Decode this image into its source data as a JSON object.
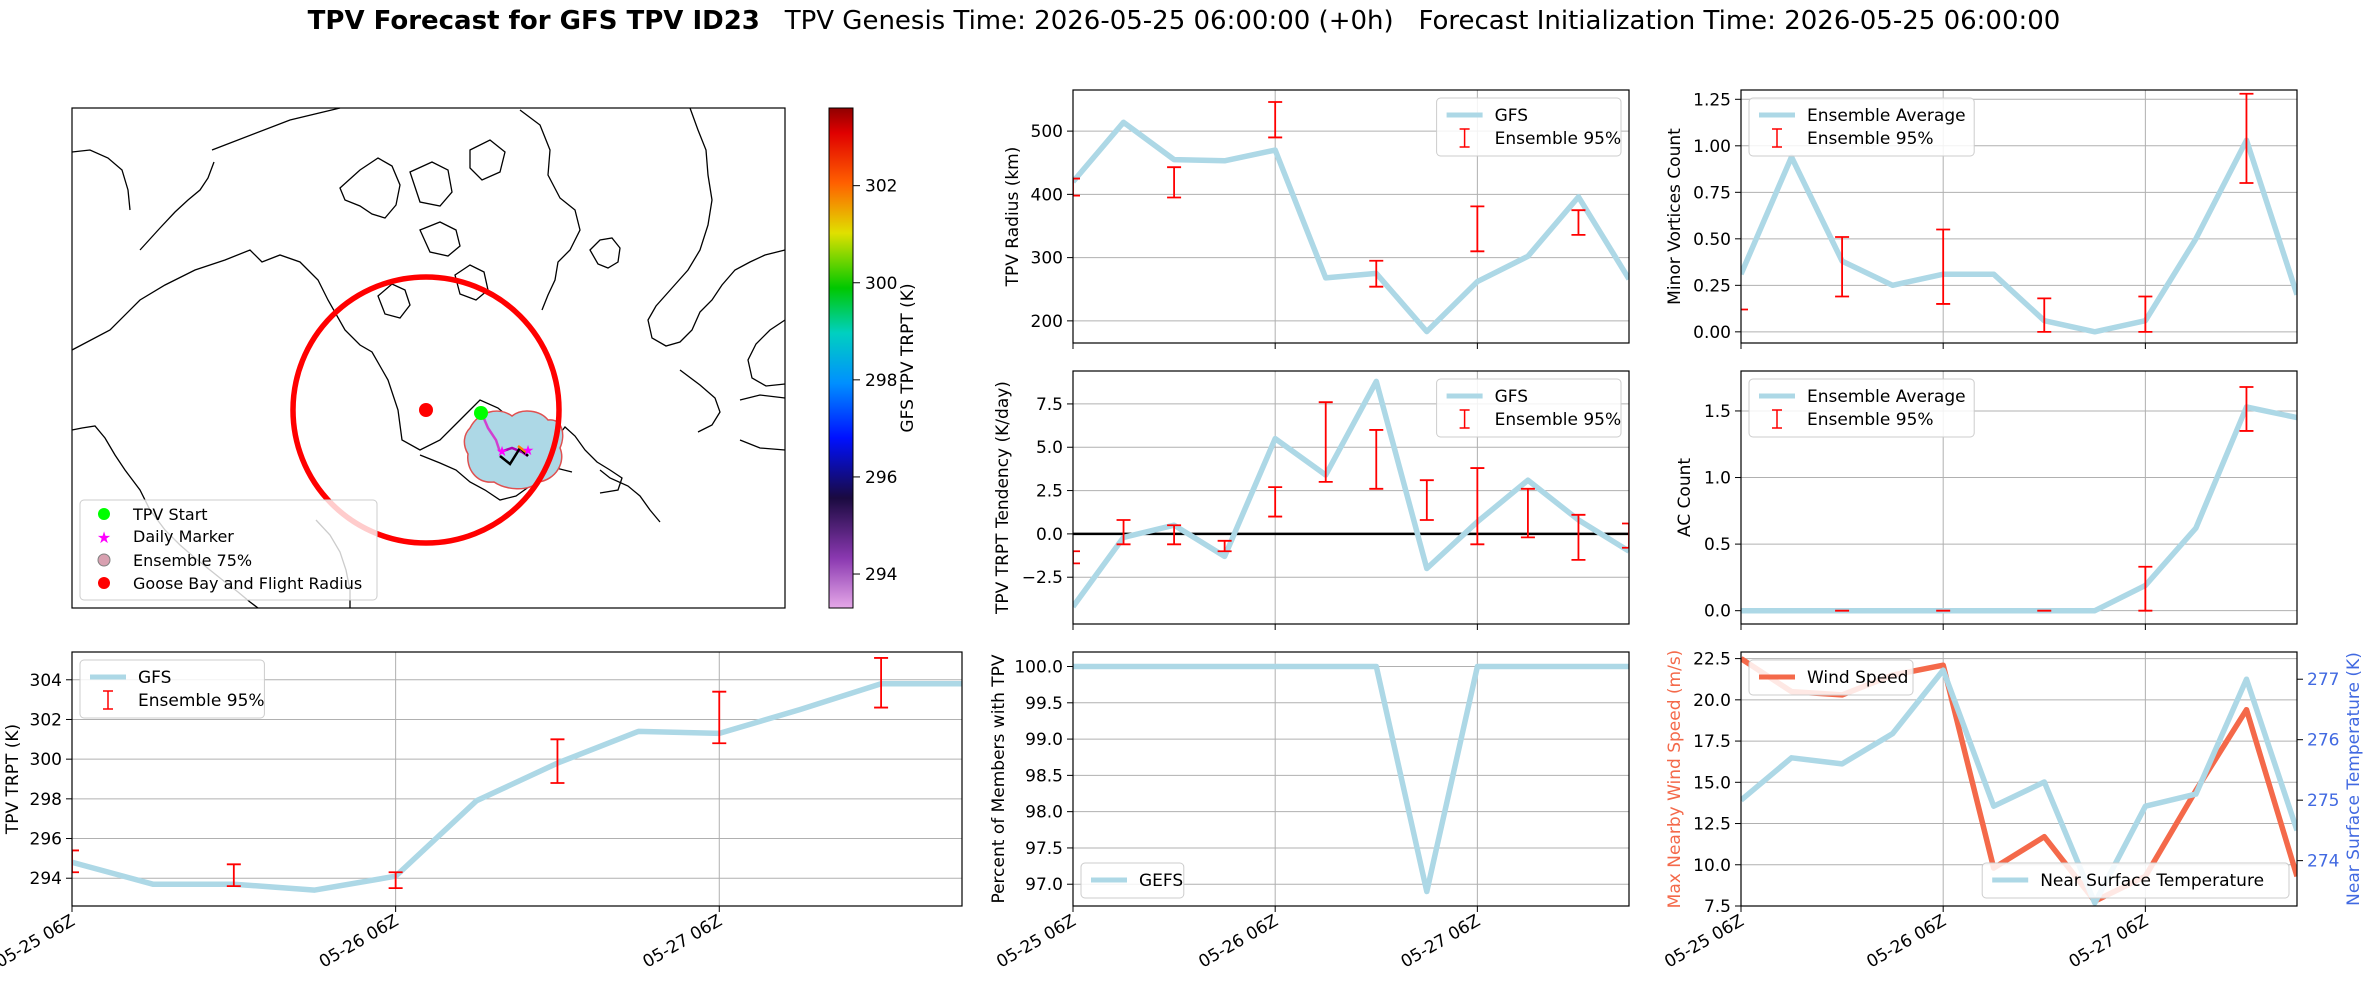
{
  "header": {
    "title_bold": "TPV Forecast for GFS TPV ID23",
    "genesis": "TPV Genesis Time: 2026-05-25 06:00:00 (+0h)",
    "init": "Forecast Initialization Time: 2026-05-25 06:00:00"
  },
  "colors": {
    "gfs": "#add8e6",
    "ensemble": "#ff0000",
    "wind": "#f4694a",
    "temp_axis": "#4169e1",
    "start": "#00ff00",
    "marker": "#ff00ff",
    "goose": "#ff0000"
  },
  "map": {
    "colorbar_label": "GFS TPV TRPT (K)",
    "colorbar_ticks": [
      294,
      296,
      298,
      300,
      302
    ],
    "colorbar_range": [
      293.3,
      303.6
    ],
    "legend": [
      "TPV Start",
      "Daily Marker",
      "Ensemble 75%",
      "Goose Bay and Flight Radius"
    ]
  },
  "chart_data": [
    {
      "id": "radius",
      "type": "line",
      "ylabel": "TPV Radius (km)",
      "ylim": [
        165,
        565
      ],
      "yticks": [
        200,
        300,
        400,
        500
      ],
      "yticklabels": [
        "200",
        "300",
        "400",
        "500"
      ],
      "xlim": [
        0,
        33
      ],
      "legend": [
        "GFS",
        "Ensemble 95%"
      ],
      "legend_loc": "upper right",
      "series": [
        {
          "name": "GFS",
          "x": [
            0,
            3,
            6,
            9,
            12,
            15,
            18,
            21,
            24,
            27,
            30,
            33
          ],
          "y": [
            420,
            514,
            455,
            453,
            470,
            268,
            275,
            183,
            262,
            302,
            396,
            266
          ]
        }
      ],
      "errorbars": [
        {
          "x": 0,
          "lo": 398,
          "hi": 425
        },
        {
          "x": 6,
          "lo": 395,
          "hi": 443
        },
        {
          "x": 12,
          "lo": 490,
          "hi": 546
        },
        {
          "x": 18,
          "lo": 254,
          "hi": 295
        },
        {
          "x": 24,
          "lo": 310,
          "hi": 381
        },
        {
          "x": 30,
          "lo": 336,
          "hi": 375
        }
      ]
    },
    {
      "id": "minor",
      "type": "line",
      "ylabel": "Minor Vortices Count",
      "ylim": [
        -0.06,
        1.3
      ],
      "yticks": [
        0,
        0.25,
        0.5,
        0.75,
        1,
        1.25
      ],
      "yticklabels": [
        "0.00",
        "0.25",
        "0.50",
        "0.75",
        "1.00",
        "1.25"
      ],
      "xlim": [
        0,
        33
      ],
      "legend": [
        "Ensemble Average",
        "Ensemble 95%"
      ],
      "legend_loc": "upper left",
      "series": [
        {
          "name": "Ensemble Average",
          "x": [
            0,
            3,
            6,
            9,
            12,
            15,
            18,
            21,
            24,
            27,
            30,
            33
          ],
          "y": [
            0.31,
            0.94,
            0.38,
            0.25,
            0.31,
            0.31,
            0.06,
            0.0,
            0.06,
            0.5,
            1.03,
            0.2
          ]
        }
      ],
      "errorbars": [
        {
          "x": 0,
          "lo": 0.12,
          "hi": 0.12
        },
        {
          "x": 6,
          "lo": 0.19,
          "hi": 0.51
        },
        {
          "x": 12,
          "lo": 0.15,
          "hi": 0.55
        },
        {
          "x": 18,
          "lo": 0.0,
          "hi": 0.18
        },
        {
          "x": 24,
          "lo": 0.0,
          "hi": 0.19
        },
        {
          "x": 30,
          "lo": 0.8,
          "hi": 1.28
        }
      ]
    },
    {
      "id": "tendency",
      "type": "line",
      "ylabel": "TPV TRPT Tendency (K/day)",
      "ylim": [
        -5.2,
        9.4
      ],
      "yticks": [
        -2.5,
        0,
        2.5,
        5,
        7.5
      ],
      "yticklabels": [
        "−2.5",
        "0.0",
        "2.5",
        "5.0",
        "7.5"
      ],
      "xlim": [
        0,
        33
      ],
      "zero_line": true,
      "legend": [
        "GFS",
        "Ensemble 95%"
      ],
      "legend_loc": "upper right",
      "series": [
        {
          "name": "GFS",
          "x": [
            0,
            3,
            6,
            9,
            12,
            15,
            18,
            21,
            24,
            27,
            30,
            33
          ],
          "y": [
            -4.2,
            -0.2,
            0.5,
            -1.3,
            5.5,
            3.4,
            8.8,
            -2.0,
            0.7,
            3.1,
            0.8,
            -1.0
          ]
        }
      ],
      "errorbars": [
        {
          "x": 0,
          "lo": -1.7,
          "hi": -1.0
        },
        {
          "x": 3,
          "lo": -0.6,
          "hi": 0.8
        },
        {
          "x": 6,
          "lo": -0.6,
          "hi": 0.5
        },
        {
          "x": 9,
          "lo": -1.0,
          "hi": -0.4
        },
        {
          "x": 12,
          "lo": 1.0,
          "hi": 2.7
        },
        {
          "x": 15,
          "lo": 3.0,
          "hi": 7.6
        },
        {
          "x": 18,
          "lo": 2.6,
          "hi": 6.0
        },
        {
          "x": 21,
          "lo": 0.8,
          "hi": 3.1
        },
        {
          "x": 24,
          "lo": -0.6,
          "hi": 3.8
        },
        {
          "x": 27,
          "lo": -0.2,
          "hi": 2.6
        },
        {
          "x": 30,
          "lo": -1.5,
          "hi": 1.1
        },
        {
          "x": 33,
          "lo": -0.8,
          "hi": 0.6
        }
      ]
    },
    {
      "id": "ac",
      "type": "line",
      "ylabel": "AC Count",
      "ylim": [
        -0.1,
        1.8
      ],
      "yticks": [
        0,
        0.5,
        1,
        1.5
      ],
      "yticklabels": [
        "0.0",
        "0.5",
        "1.0",
        "1.5"
      ],
      "xlim": [
        0,
        33
      ],
      "legend": [
        "Ensemble Average",
        "Ensemble 95%"
      ],
      "legend_loc": "upper left",
      "series": [
        {
          "name": "Ensemble Average",
          "x": [
            0,
            3,
            6,
            9,
            12,
            15,
            18,
            21,
            24,
            27,
            30,
            33
          ],
          "y": [
            0,
            0,
            0,
            0,
            0,
            0,
            0,
            0,
            0.19,
            0.62,
            1.53,
            1.45
          ]
        }
      ],
      "errorbars": [
        {
          "x": 6,
          "lo": 0,
          "hi": 0
        },
        {
          "x": 12,
          "lo": 0,
          "hi": 0
        },
        {
          "x": 18,
          "lo": 0,
          "hi": 0
        },
        {
          "x": 24,
          "lo": 0.0,
          "hi": 0.33
        },
        {
          "x": 30,
          "lo": 1.35,
          "hi": 1.68
        }
      ]
    },
    {
      "id": "trpt",
      "type": "line",
      "ylabel": "TPV TRPT (K)",
      "ylim": [
        292.6,
        305.4
      ],
      "yticks": [
        294,
        296,
        298,
        300,
        302,
        304
      ],
      "yticklabels": [
        "294",
        "296",
        "298",
        "300",
        "302",
        "304"
      ],
      "xlim": [
        0,
        33
      ],
      "xticks": [
        0,
        12,
        24
      ],
      "xticklabels": [
        "05-25 06Z",
        "05-26 06Z",
        "05-27 06Z"
      ],
      "legend": [
        "GFS",
        "Ensemble 95%"
      ],
      "legend_loc": "upper left",
      "series": [
        {
          "name": "GFS",
          "x": [
            0,
            3,
            6,
            9,
            12,
            15,
            18,
            21,
            24,
            27,
            30,
            33
          ],
          "y": [
            294.8,
            293.7,
            293.7,
            293.4,
            294.1,
            297.9,
            299.8,
            301.4,
            301.3,
            302.5,
            303.8,
            303.8
          ]
        }
      ],
      "errorbars": [
        {
          "x": 0,
          "lo": 294.3,
          "hi": 295.4
        },
        {
          "x": 6,
          "lo": 293.6,
          "hi": 294.7
        },
        {
          "x": 12,
          "lo": 293.5,
          "hi": 294.3
        },
        {
          "x": 18,
          "lo": 298.8,
          "hi": 301.0
        },
        {
          "x": 24,
          "lo": 300.8,
          "hi": 303.4
        },
        {
          "x": 30,
          "lo": 302.6,
          "hi": 305.1
        }
      ]
    },
    {
      "id": "percent",
      "type": "line",
      "ylabel": "Percent of Members with TPV",
      "ylim": [
        96.7,
        100.2
      ],
      "yticks": [
        97,
        97.5,
        98,
        98.5,
        99,
        99.5,
        100
      ],
      "yticklabels": [
        "97.0",
        "97.5",
        "98.0",
        "98.5",
        "99.0",
        "99.5",
        "100.0"
      ],
      "xlim": [
        0,
        33
      ],
      "xticks": [
        0,
        12,
        24
      ],
      "xticklabels": [
        "05-25 06Z",
        "05-26 06Z",
        "05-27 06Z"
      ],
      "legend": [
        "GEFS"
      ],
      "legend_loc": "lower left",
      "series": [
        {
          "name": "GEFS",
          "x": [
            0,
            3,
            6,
            9,
            12,
            15,
            18,
            21,
            24,
            27,
            30,
            33
          ],
          "y": [
            100,
            100,
            100,
            100,
            100,
            100,
            100,
            96.9,
            100,
            100,
            100,
            100
          ]
        }
      ],
      "errorbars": []
    },
    {
      "id": "wind",
      "type": "line",
      "ylabel": "Max Nearby Wind Speed (m/s)",
      "ylabel_right": "Near Surface Temperature (K)",
      "ylim": [
        7.5,
        22.9
      ],
      "yticks": [
        7.5,
        10,
        12.5,
        15,
        17.5,
        20,
        22.5
      ],
      "yticklabels": [
        "7.5",
        "10.0",
        "12.5",
        "15.0",
        "17.5",
        "20.0",
        "22.5"
      ],
      "ylim_right": [
        273.25,
        277.45
      ],
      "yticks_right": [
        274,
        275,
        276,
        277
      ],
      "yticklabels_right": [
        "274",
        "275",
        "276",
        "277"
      ],
      "xlim": [
        0,
        33
      ],
      "xticks": [
        0,
        12,
        24
      ],
      "xticklabels": [
        "05-25 06Z",
        "05-26 06Z",
        "05-27 06Z"
      ],
      "legend": [
        "Wind Speed"
      ],
      "legend_right": [
        "Near Surface Temperature"
      ],
      "series": [
        {
          "name": "Wind Speed",
          "axis": "left",
          "x": [
            0,
            3,
            6,
            9,
            12,
            15,
            18,
            21,
            24,
            27,
            30,
            33
          ],
          "y": [
            22.5,
            20.5,
            20.3,
            21.5,
            22.1,
            9.8,
            11.7,
            7.8,
            9.3,
            14.5,
            19.4,
            9.3
          ]
        },
        {
          "name": "Near Surface Temperature",
          "axis": "right",
          "x": [
            0,
            3,
            6,
            9,
            12,
            15,
            18,
            21,
            24,
            27,
            30,
            33
          ],
          "y": [
            275.0,
            275.7,
            275.6,
            276.1,
            277.15,
            274.9,
            275.3,
            273.3,
            274.9,
            275.1,
            277.0,
            274.5
          ]
        }
      ],
      "errorbars": []
    }
  ]
}
